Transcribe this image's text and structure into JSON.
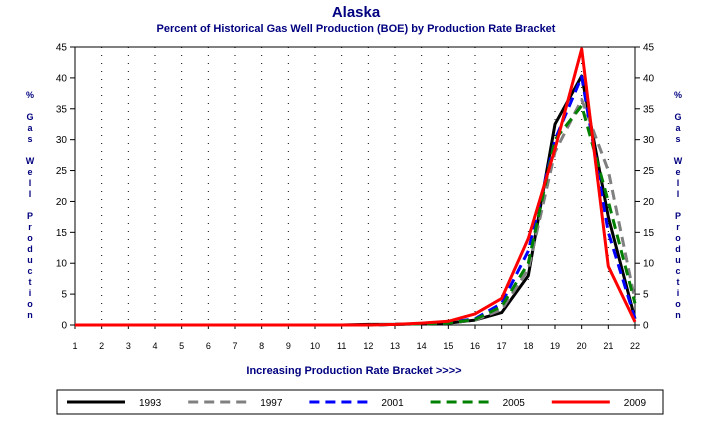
{
  "chart_data": {
    "type": "line",
    "title": "Alaska",
    "subtitle": "Percent of Historical Gas Well Production (BOE) by Production Rate Bracket",
    "xlabel": "Increasing Production Rate Bracket >>>>",
    "ylabel": "% Gas Well Production",
    "x": [
      1,
      2,
      3,
      4,
      5,
      6,
      7,
      8,
      9,
      10,
      11,
      12,
      13,
      14,
      15,
      16,
      17,
      18,
      19,
      20,
      21,
      22
    ],
    "xlim": [
      1,
      22
    ],
    "ylim": [
      0,
      45
    ],
    "yticks": [
      0,
      5,
      10,
      15,
      20,
      25,
      30,
      35,
      40,
      45
    ],
    "grid": true,
    "legend_position": "bottom",
    "series": [
      {
        "name": "1993",
        "color": "#000000",
        "dash": "solid",
        "values": [
          0,
          0,
          0,
          0,
          0,
          0,
          0,
          0,
          0,
          0,
          0,
          0.1,
          0.1,
          0.2,
          0.3,
          0.8,
          2.0,
          8.0,
          32.5,
          40.3,
          17.5,
          1.0
        ]
      },
      {
        "name": "1997",
        "color": "#808080",
        "dash": "dashed",
        "values": [
          0,
          0,
          0,
          0,
          0,
          0,
          0,
          0,
          0,
          0,
          0,
          0,
          0.1,
          0.2,
          0.3,
          0.8,
          2.5,
          9.0,
          28.0,
          36.5,
          25.0,
          4.0
        ]
      },
      {
        "name": "2001",
        "color": "#0000ff",
        "dash": "dashed",
        "values": [
          0,
          0,
          0,
          0,
          0,
          0,
          0,
          0,
          0,
          0,
          0,
          0,
          0.1,
          0.2,
          0.4,
          1.0,
          3.5,
          12.0,
          30.0,
          40.2,
          15.0,
          1.0
        ]
      },
      {
        "name": "2005",
        "color": "#008000",
        "dash": "dashed",
        "values": [
          0,
          0,
          0,
          0,
          0,
          0,
          0,
          0,
          0,
          0,
          0,
          0,
          0.1,
          0.2,
          0.3,
          0.9,
          3.0,
          10.0,
          30.0,
          35.5,
          20.0,
          3.5
        ]
      },
      {
        "name": "2009",
        "color": "#ff0000",
        "dash": "solid",
        "values": [
          0,
          0,
          0,
          0,
          0,
          0,
          0,
          0,
          0,
          0,
          0,
          0,
          0.1,
          0.3,
          0.6,
          1.8,
          4.3,
          14.0,
          28.5,
          44.7,
          9.5,
          0.5
        ]
      }
    ]
  }
}
